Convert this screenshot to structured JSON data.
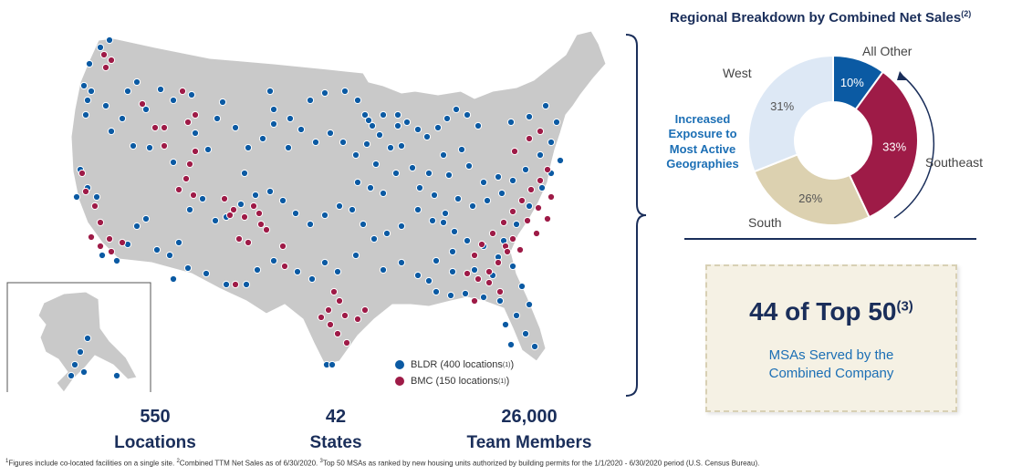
{
  "map": {
    "bldr_color": "#0b5aa3",
    "bmc_color": "#9e1b47",
    "land_color": "#c9c9c9",
    "legend": {
      "bldr": "BLDR (400 locations",
      "bmc": "BMC (150 locations",
      "footnote_marker": "(1)"
    }
  },
  "stats": [
    {
      "value": "550",
      "label": "Locations"
    },
    {
      "value": "42",
      "label": "States"
    },
    {
      "value": "26,000",
      "label": "Team Members"
    }
  ],
  "regional": {
    "title": "Regional Breakdown by Combined Net Sales",
    "title_marker": "(2)",
    "callout": "Increased Exposure to Most Active Geographies",
    "segments": [
      {
        "name": "All Other",
        "percent": 10,
        "label": "10%",
        "color": "#0b5aa3"
      },
      {
        "name": "Southeast",
        "percent": 33,
        "label": "33%",
        "color": "#9e1b47"
      },
      {
        "name": "South",
        "percent": 26,
        "label": "26%",
        "color": "#dcd1b0"
      },
      {
        "name": "West",
        "percent": 31,
        "label": "31%",
        "color": "#dde8f5"
      }
    ]
  },
  "msa": {
    "headline": "44 of Top 50",
    "headline_marker": "(3)",
    "subtitle_line1": "MSAs Served by the",
    "subtitle_line2": "Combined Company"
  },
  "footnote": {
    "m1": "1",
    "t1": "Figures include co-located facilities on a single site. ",
    "m2": "2",
    "t2": "Combined TTM Net Sales as of 6/30/2020. ",
    "m3": "3",
    "t3": "Top 50 MSAs as ranked by new housing units authorized by building permits for the 1/1/2020 - 6/30/2020 period (U.S. Census Bureau)."
  }
}
